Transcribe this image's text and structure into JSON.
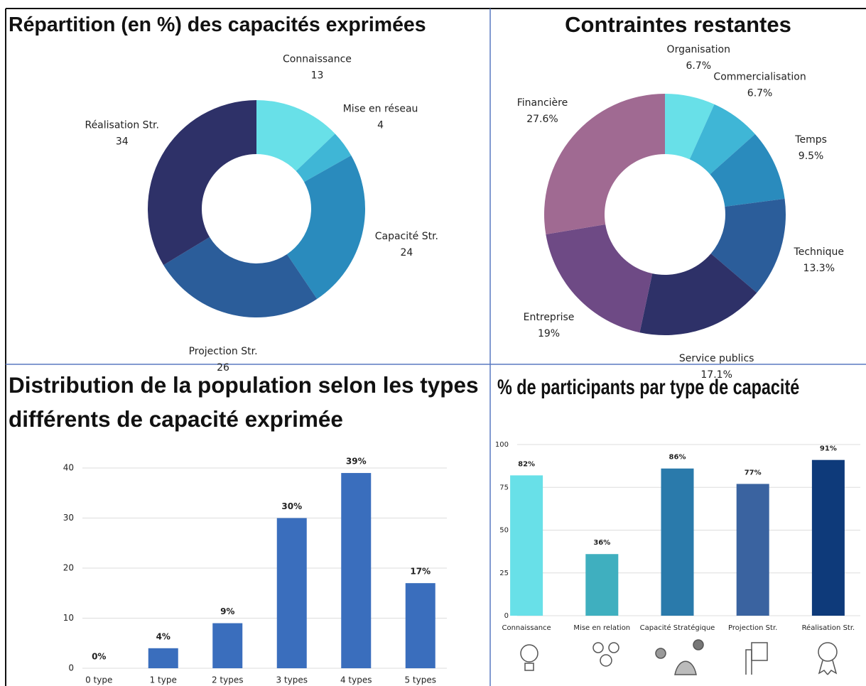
{
  "chart_data": [
    {
      "type": "donut",
      "title": "Répartition (en %) des capacités exprimées",
      "categories": [
        "Connaissance",
        "Mise en réseau",
        "Capacité Str.",
        "Projection Str.",
        "Réalisation Str."
      ],
      "values": [
        13,
        4,
        24,
        26,
        34
      ],
      "colors": [
        "#68e0e8",
        "#3fb6d6",
        "#2a8bbd",
        "#2b5d9a",
        "#2e3168"
      ]
    },
    {
      "type": "donut",
      "title": "Contraintes restantes",
      "categories": [
        "Organisation",
        "Commercialisation",
        "Temps",
        "Technique",
        "Service publics",
        "Entreprise",
        "Financière"
      ],
      "values": [
        6.7,
        6.7,
        9.5,
        13.3,
        17.1,
        19,
        27.6
      ],
      "value_labels": [
        "6.7%",
        "6.7%",
        "9.5%",
        "13.3%",
        "17.1%",
        "19%",
        "27.6%"
      ],
      "colors": [
        "#68e0e8",
        "#3fb6d6",
        "#2a8bbd",
        "#2b5d9a",
        "#2e3168",
        "#6e4a85",
        "#a06a92"
      ]
    },
    {
      "type": "bar",
      "title": "Distribution de la population selon les types différents de capacité exprimée",
      "categories": [
        "0 type",
        "1 type",
        "2 types",
        "3 types",
        "4 types",
        "5 types"
      ],
      "values": [
        0,
        4,
        9,
        30,
        39,
        17
      ],
      "value_labels": [
        "0%",
        "4%",
        "9%",
        "30%",
        "39%",
        "17%"
      ],
      "color": "#3a6ebd",
      "ylim": [
        0,
        40
      ],
      "yticks": [
        0,
        10,
        20,
        30,
        40
      ],
      "grid": true
    },
    {
      "type": "bar",
      "title": "% de participants par type de capacité",
      "categories": [
        "Connaissance",
        "Mise en relation",
        "Capacité Stratégique",
        "Projection Str.",
        "Réalisation Str."
      ],
      "values": [
        82,
        36,
        86,
        77,
        91
      ],
      "value_labels": [
        "82%",
        "36%",
        "86%",
        "77%",
        "91%"
      ],
      "colors": [
        "#68e0e8",
        "#3fafbf",
        "#2a7aab",
        "#3a63a0",
        "#0e3a7a"
      ],
      "ylim": [
        0,
        100
      ],
      "yticks": [
        0,
        25,
        50,
        75,
        100
      ],
      "grid": true
    }
  ]
}
